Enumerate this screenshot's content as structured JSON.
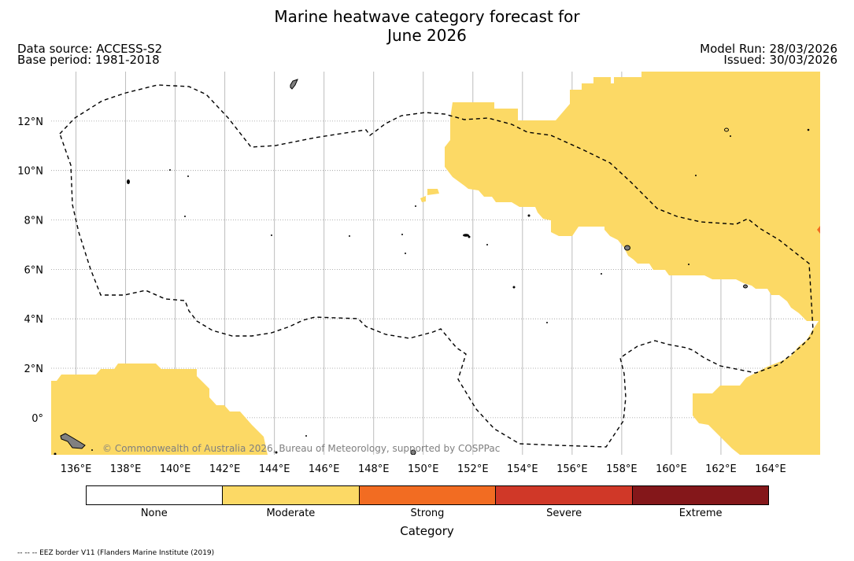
{
  "header": {
    "title_line1": "Marine heatwave category forecast for",
    "title_line2": "June 2026",
    "data_source": "Data source: ACCESS-S2",
    "base_period": "Base period: 1981-2018",
    "model_run": "Model Run: 28/03/2026",
    "issued": "Issued: 30/03/2026"
  },
  "map": {
    "lon_range": [
      135,
      166
    ],
    "lat_range": [
      -1.5,
      14
    ],
    "lon_ticks": [
      136,
      138,
      140,
      142,
      144,
      146,
      148,
      150,
      152,
      154,
      156,
      158,
      160,
      162,
      164
    ],
    "lon_labels": [
      "136°E",
      "138°E",
      "140°E",
      "142°E",
      "144°E",
      "146°E",
      "148°E",
      "150°E",
      "152°E",
      "154°E",
      "156°E",
      "158°E",
      "160°E",
      "162°E",
      "164°E"
    ],
    "lat_ticks": [
      0,
      2,
      4,
      6,
      8,
      10,
      12
    ],
    "lat_labels": [
      "0°",
      "2°N",
      "4°N",
      "6°N",
      "8°N",
      "10°N",
      "12°N"
    ],
    "copyright": "© Commonwealth of Australia 2026, Bureau of Meteorology, supported by COSPPac",
    "colors": {
      "moderate": "#fcd965",
      "strong": "#f26c22",
      "land": "#808080",
      "border": "#000000",
      "grid": "#bdbdbd"
    }
  },
  "legend": {
    "title": "Category",
    "items": [
      {
        "label": "None",
        "color": "#ffffff"
      },
      {
        "label": "Moderate",
        "color": "#fcd965"
      },
      {
        "label": "Strong",
        "color": "#f26c22"
      },
      {
        "label": "Severe",
        "color": "#d03828"
      },
      {
        "label": "Extreme",
        "color": "#84171a"
      }
    ]
  },
  "footnote": "-- -- -- EEZ border V11 (Flanders Marine Institute (2019)"
}
